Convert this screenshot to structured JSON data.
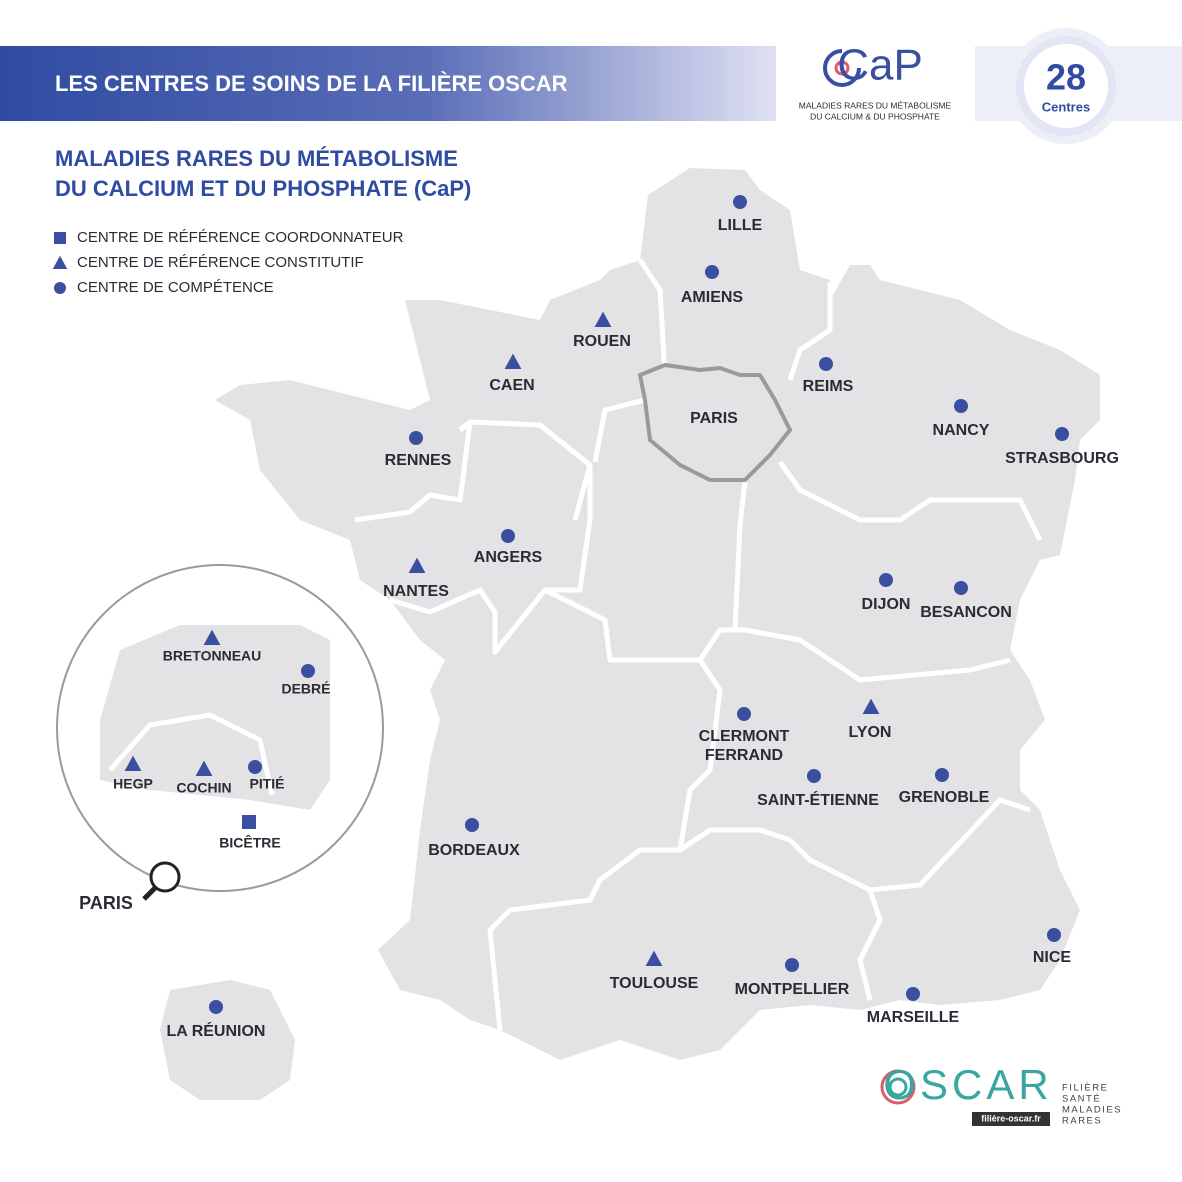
{
  "header": {
    "title": "LES CENTRES DE SOINS DE LA FILIÈRE OSCAR"
  },
  "logo": {
    "name": "CaP",
    "lines": [
      "MALADIES RARES DU MÉTABOLISME",
      "DU CALCIUM & DU PHOSPHATE"
    ]
  },
  "badge": {
    "count": 28,
    "label": "Centres"
  },
  "subtitle": [
    "MALADIES RARES DU MÉTABOLISME",
    "DU CALCIUM ET DU PHOSPHATE (CaP)"
  ],
  "legend": [
    {
      "type": "square",
      "label": "CENTRE DE RÉFÉRENCE COORDONNATEUR"
    },
    {
      "type": "triangle",
      "label": "CENTRE DE RÉFÉRENCE CONSTITUTIF"
    },
    {
      "type": "circle",
      "label": "CENTRE DE COMPÉTENCE"
    }
  ],
  "map": {
    "region_label": "PARIS",
    "centers": [
      {
        "name": "LILLE",
        "type": "circle"
      },
      {
        "name": "AMIENS",
        "type": "circle"
      },
      {
        "name": "ROUEN",
        "type": "triangle"
      },
      {
        "name": "CAEN",
        "type": "triangle"
      },
      {
        "name": "REIMS",
        "type": "circle"
      },
      {
        "name": "NANCY",
        "type": "circle"
      },
      {
        "name": "STRASBOURG",
        "type": "circle"
      },
      {
        "name": "RENNES",
        "type": "circle"
      },
      {
        "name": "ANGERS",
        "type": "circle"
      },
      {
        "name": "NANTES",
        "type": "triangle"
      },
      {
        "name": "DIJON",
        "type": "circle"
      },
      {
        "name": "BESANCON",
        "type": "circle"
      },
      {
        "name": [
          "CLERMONT",
          "FERRAND"
        ],
        "type": "circle"
      },
      {
        "name": "LYON",
        "type": "triangle"
      },
      {
        "name": "SAINT-ÉTIENNE",
        "type": "circle"
      },
      {
        "name": "GRENOBLE",
        "type": "circle"
      },
      {
        "name": "BORDEAUX",
        "type": "circle"
      },
      {
        "name": "TOULOUSE",
        "type": "triangle"
      },
      {
        "name": "MONTPELLIER",
        "type": "circle"
      },
      {
        "name": "NICE",
        "type": "circle"
      },
      {
        "name": "MARSEILLE",
        "type": "circle"
      },
      {
        "name": "LA RÉUNION",
        "type": "circle"
      }
    ]
  },
  "inset": {
    "label": "PARIS",
    "centers": [
      {
        "name": "BRETONNEAU",
        "type": "triangle"
      },
      {
        "name": "DEBRÉ",
        "type": "circle"
      },
      {
        "name": "HEGP",
        "type": "triangle"
      },
      {
        "name": "COCHIN",
        "type": "triangle"
      },
      {
        "name": "PITIÉ",
        "type": "circle"
      },
      {
        "name": "BICÊTRE",
        "type": "square"
      }
    ]
  },
  "footer": {
    "logo": "OSCAR",
    "url": "filière-oscar.fr",
    "tagline": [
      "FILIÈRE",
      "SANTÉ",
      "MALADIES",
      "RARES"
    ]
  }
}
